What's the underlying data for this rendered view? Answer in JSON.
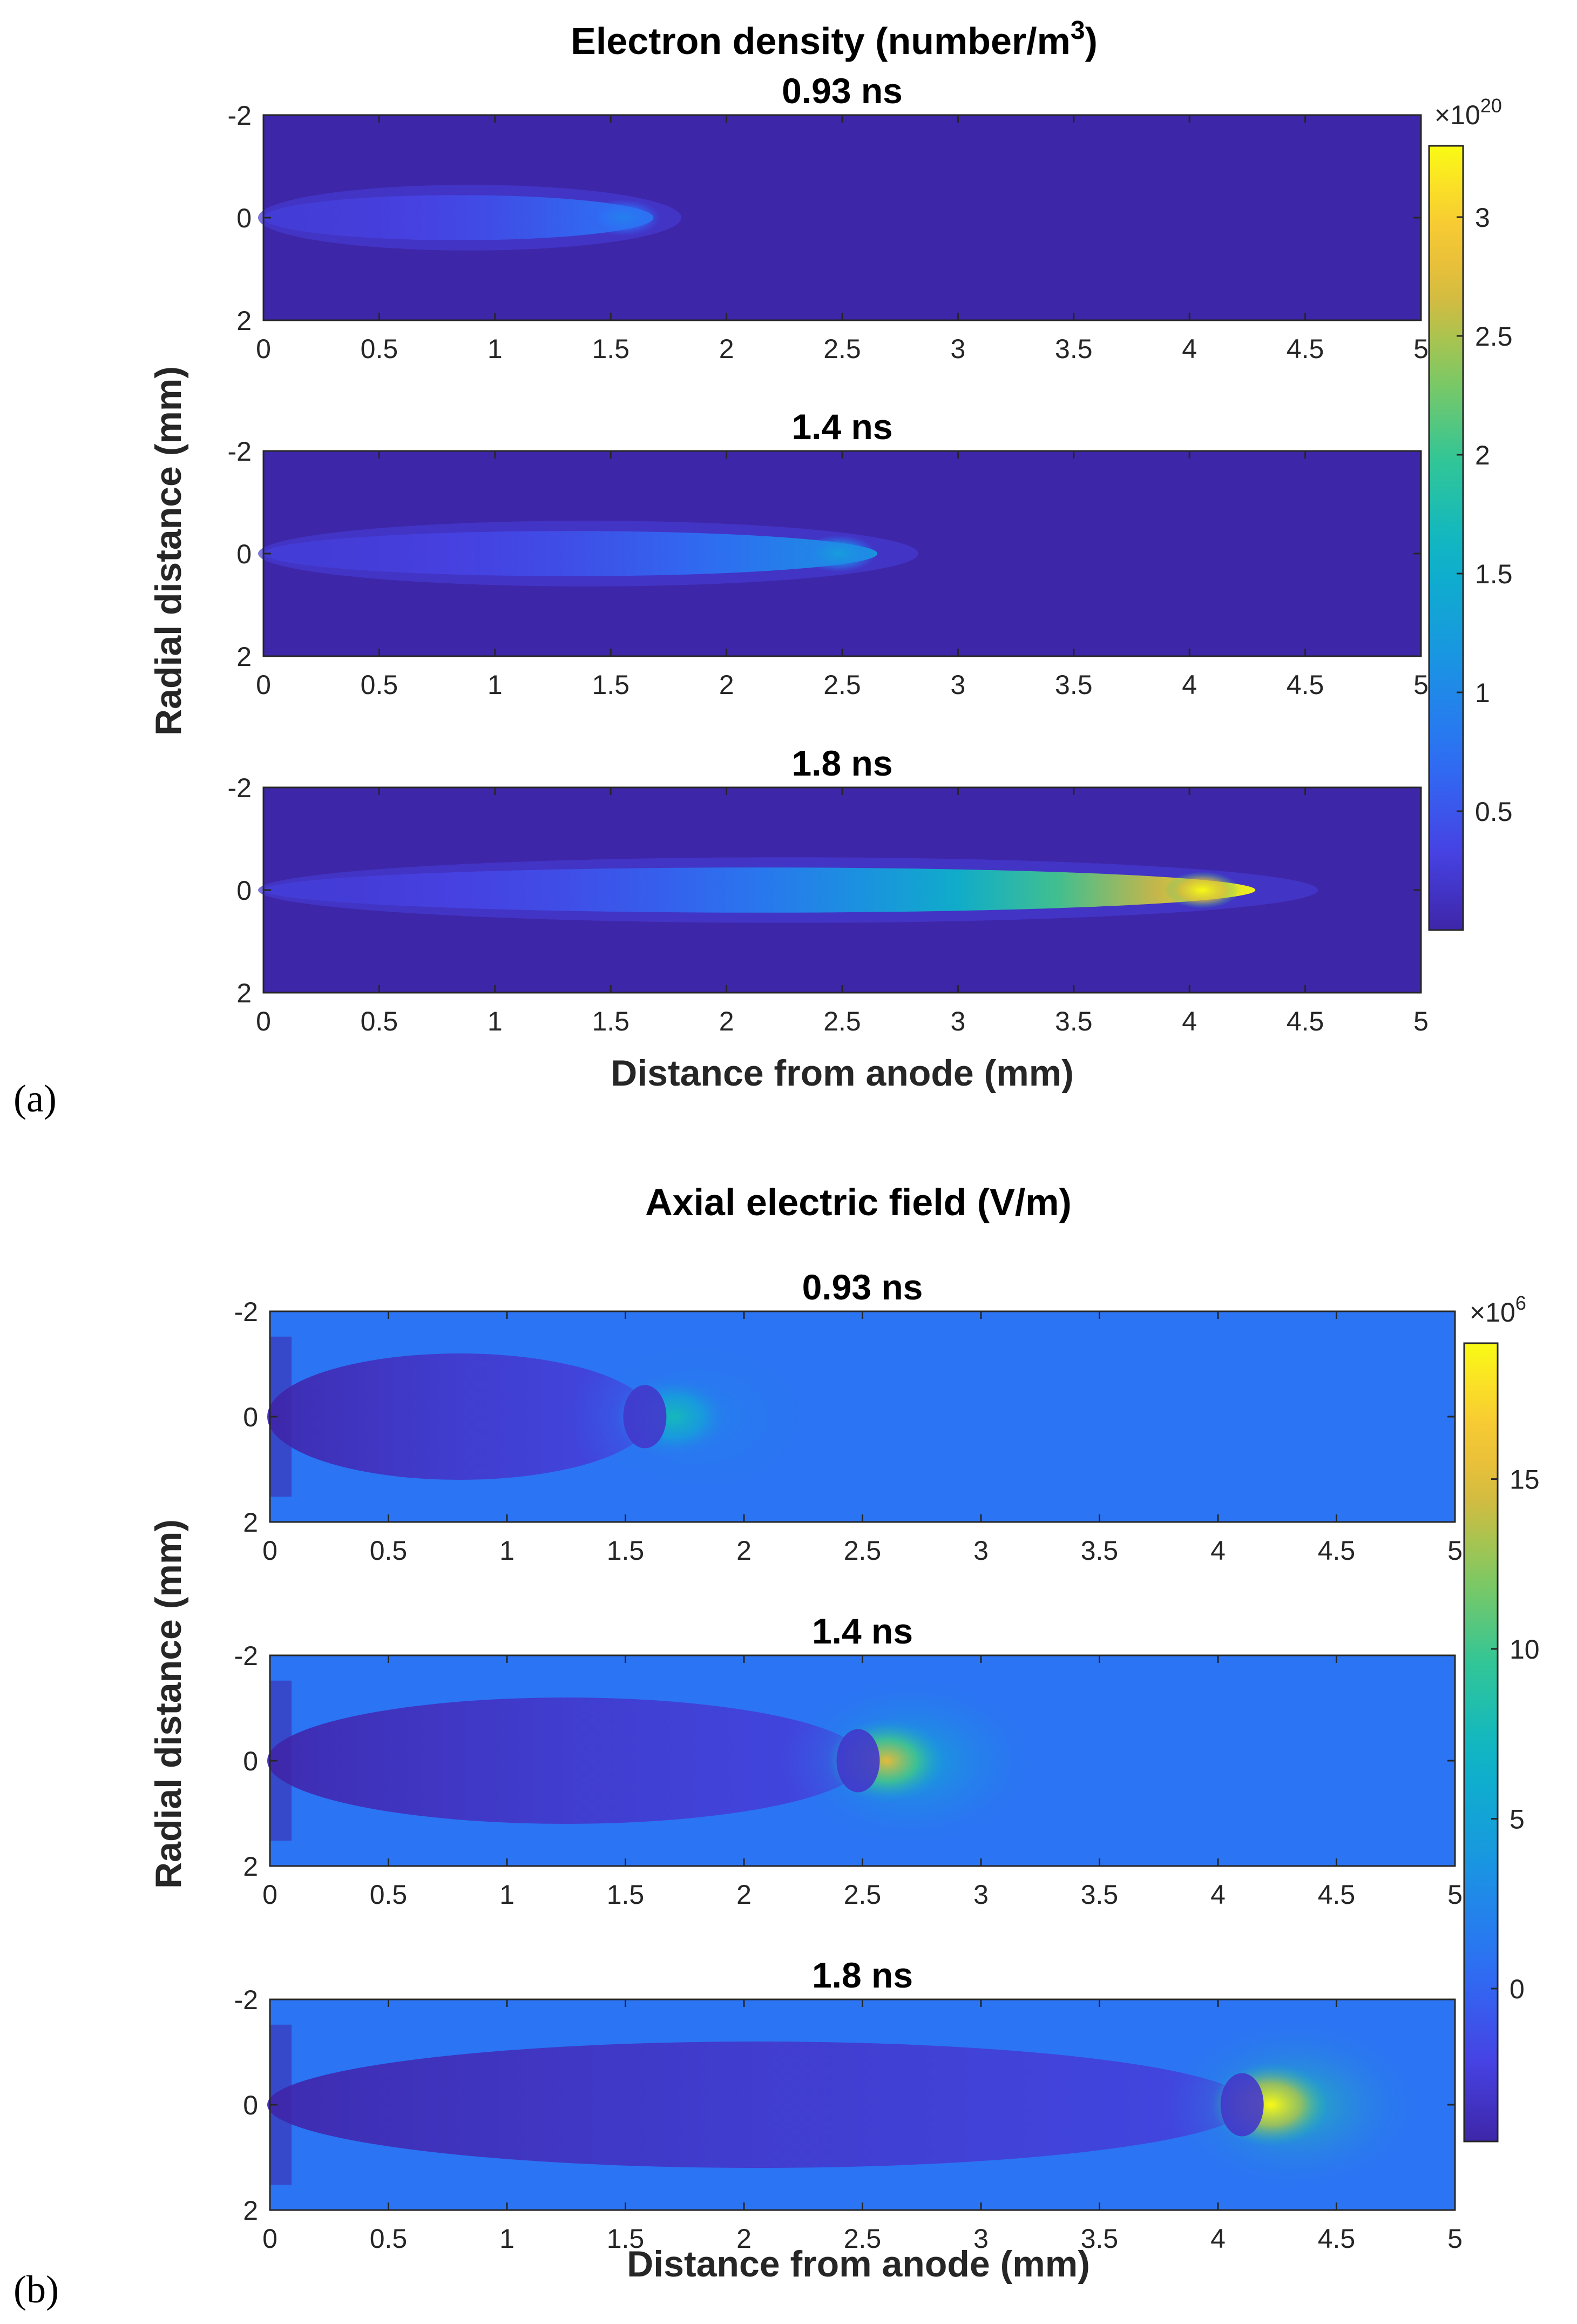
{
  "chart_data": [
    {
      "type": "heatmap",
      "panel_label": "(a)",
      "title": "Electron density (number/m",
      "title_sup": "3",
      "title_end": ")",
      "xlabel": "Distance from anode (mm)",
      "ylabel": "Radial distance (mm)",
      "xlim": [
        0,
        5
      ],
      "ylim": [
        -2,
        2
      ],
      "x_ticks": [
        "0",
        "0.5",
        "1",
        "1.5",
        "2",
        "2.5",
        "3",
        "3.5",
        "4",
        "4.5",
        "5"
      ],
      "y_ticks": [
        "-2",
        "0",
        "2"
      ],
      "colormap": "parula",
      "colorbar": {
        "exponent_prefix": "×10",
        "exponent": "20",
        "range": [
          0,
          3.3
        ],
        "tick_values": [
          0.5,
          1,
          1.5,
          2,
          2.5,
          3
        ],
        "tick_labels": [
          "0.5",
          "1",
          "1.5",
          "2",
          "2.5",
          "3"
        ]
      },
      "subplots": [
        {
          "label": "0.93 ns",
          "front_mm": 1.62,
          "peak": 0.9,
          "background": 0.0
        },
        {
          "label": "1.4 ns",
          "front_mm": 2.55,
          "peak": 1.25,
          "background": 0.0
        },
        {
          "label": "1.8 ns",
          "front_mm": 4.12,
          "peak": 3.3,
          "background": 0.0
        }
      ]
    },
    {
      "type": "heatmap",
      "panel_label": "(b)",
      "title": "Axial electric field (V/m)",
      "xlabel": "Distance from anode (mm)",
      "ylabel": "Radial distance (mm)",
      "xlim": [
        0,
        5
      ],
      "ylim": [
        -2,
        2
      ],
      "x_ticks": [
        "0",
        "0.5",
        "1",
        "1.5",
        "2",
        "2.5",
        "3",
        "3.5",
        "4",
        "4.5",
        "5"
      ],
      "y_ticks": [
        "-2",
        "0",
        "2"
      ],
      "colormap": "parula",
      "colorbar": {
        "exponent_prefix": "×10",
        "exponent": "6",
        "range": [
          -4.5,
          19
        ],
        "tick_values": [
          0,
          5,
          10,
          15
        ],
        "tick_labels": [
          "0",
          "5",
          "10",
          "15"
        ]
      },
      "subplots": [
        {
          "label": "0.93 ns",
          "front_mm": 1.6,
          "peak": 7.5,
          "background": 1.0
        },
        {
          "label": "1.4 ns",
          "front_mm": 2.5,
          "peak": 15.0,
          "background": 1.0
        },
        {
          "label": "1.8 ns",
          "front_mm": 4.12,
          "peak": 19.0,
          "background": 1.0
        }
      ]
    }
  ]
}
